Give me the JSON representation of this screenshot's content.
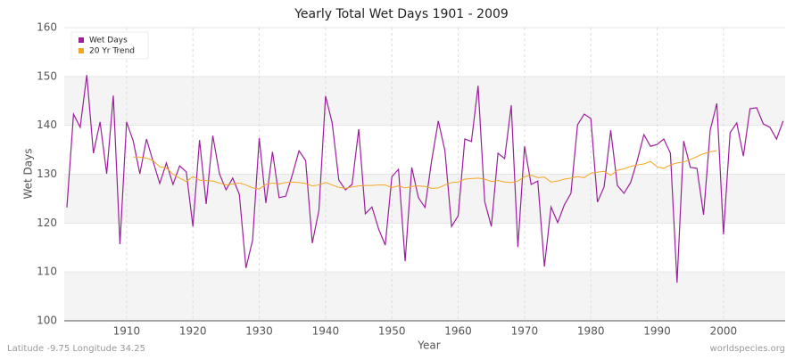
{
  "chart_data": {
    "type": "line",
    "title": "Yearly Total Wet Days 1901 - 2009",
    "xlabel": "Year",
    "ylabel": "Wet Days",
    "footer_left": "Latitude -9.75 Longitude 34.25",
    "footer_right": "worldspecies.org",
    "x": [
      1901,
      1902,
      1903,
      1904,
      1905,
      1906,
      1907,
      1908,
      1909,
      1910,
      1911,
      1912,
      1913,
      1914,
      1915,
      1916,
      1917,
      1918,
      1919,
      1920,
      1921,
      1922,
      1923,
      1924,
      1925,
      1926,
      1927,
      1928,
      1929,
      1930,
      1931,
      1932,
      1933,
      1934,
      1935,
      1936,
      1937,
      1938,
      1939,
      1940,
      1941,
      1942,
      1943,
      1944,
      1945,
      1946,
      1947,
      1948,
      1949,
      1950,
      1951,
      1952,
      1953,
      1954,
      1955,
      1956,
      1957,
      1958,
      1959,
      1960,
      1961,
      1962,
      1963,
      1964,
      1965,
      1966,
      1967,
      1968,
      1969,
      1970,
      1971,
      1972,
      1973,
      1974,
      1975,
      1976,
      1977,
      1978,
      1979,
      1980,
      1981,
      1982,
      1983,
      1984,
      1985,
      1986,
      1987,
      1988,
      1989,
      1990,
      1991,
      1992,
      1993,
      1994,
      1995,
      1996,
      1997,
      1998,
      1999,
      2000,
      2001,
      2002,
      2003,
      2004,
      2005,
      2006,
      2007,
      2008,
      2009
    ],
    "series": [
      {
        "name": "Wet Days",
        "color": "#9b1f9b",
        "values": [
          123.2,
          142.3,
          139.6,
          150.3,
          134.3,
          140.7,
          130.1,
          146.1,
          115.7,
          140.7,
          136.8,
          130.1,
          137.2,
          132.6,
          128.1,
          132.3,
          127.9,
          131.7,
          130.5,
          119.3,
          137.0,
          123.9,
          137.9,
          130.1,
          126.8,
          129.2,
          125.9,
          110.8,
          116.5,
          137.4,
          124.1,
          134.6,
          125.2,
          125.5,
          129.9,
          134.8,
          132.8,
          115.9,
          122.6,
          146.0,
          140.5,
          128.8,
          126.8,
          127.9,
          139.2,
          121.9,
          123.3,
          118.8,
          115.5,
          129.5,
          131.0,
          112.2,
          131.4,
          125.2,
          123.2,
          132.8,
          140.9,
          134.8,
          119.3,
          121.5,
          137.2,
          136.7,
          148.1,
          124.4,
          119.3,
          134.3,
          133.2,
          144.1,
          115.1,
          135.7,
          127.9,
          128.6,
          111.1,
          123.3,
          120.1,
          123.7,
          126.1,
          140.1,
          142.3,
          141.4,
          124.3,
          127.4,
          139.0,
          127.7,
          126.1,
          128.3,
          132.8,
          138.1,
          135.7,
          136.1,
          137.2,
          134.3,
          107.8,
          136.8,
          131.4,
          131.2,
          121.7,
          139.0,
          144.5,
          117.7,
          138.5,
          140.5,
          133.7,
          143.4,
          143.6,
          140.3,
          139.6,
          137.2,
          140.9
        ]
      },
      {
        "name": "20 Yr Trend",
        "color": "#f5a623",
        "values": [
          null,
          null,
          null,
          null,
          null,
          null,
          null,
          null,
          null,
          null,
          133.5,
          133.5,
          133.3,
          132.8,
          131.5,
          131.3,
          130.0,
          129.2,
          128.5,
          129.5,
          128.8,
          128.7,
          128.6,
          128.2,
          127.8,
          128.0,
          128.2,
          127.8,
          127.2,
          127.0,
          127.9,
          128.2,
          128.0,
          128.3,
          128.4,
          128.3,
          128.1,
          127.6,
          127.8,
          128.3,
          127.8,
          127.3,
          127.1,
          127.4,
          127.6,
          127.7,
          127.7,
          127.8,
          127.8,
          127.3,
          127.6,
          127.2,
          127.5,
          127.6,
          127.5,
          127.1,
          127.2,
          127.8,
          128.3,
          128.4,
          129.0,
          129.1,
          129.2,
          129.0,
          128.5,
          128.7,
          128.4,
          128.3,
          128.6,
          129.5,
          129.8,
          129.3,
          129.4,
          128.4,
          128.6,
          129.0,
          129.2,
          129.5,
          129.3,
          130.2,
          130.4,
          130.6,
          129.8,
          130.8,
          131.1,
          131.6,
          131.9,
          132.1,
          132.6,
          131.5,
          131.2,
          131.9,
          132.3,
          132.5,
          133.0,
          133.6,
          134.2,
          134.6,
          134.8,
          null,
          null,
          null,
          null,
          null,
          null,
          null,
          null,
          null,
          null
        ]
      }
    ],
    "xlim": [
      1900.6,
      2009.3
    ],
    "xticks": [
      1910,
      1920,
      1930,
      1940,
      1950,
      1960,
      1970,
      1980,
      1990,
      2000
    ],
    "ylim": [
      100,
      160
    ],
    "yticks": [
      100,
      110,
      120,
      130,
      140,
      150,
      160
    ],
    "grid": true,
    "legend": "top-left"
  }
}
